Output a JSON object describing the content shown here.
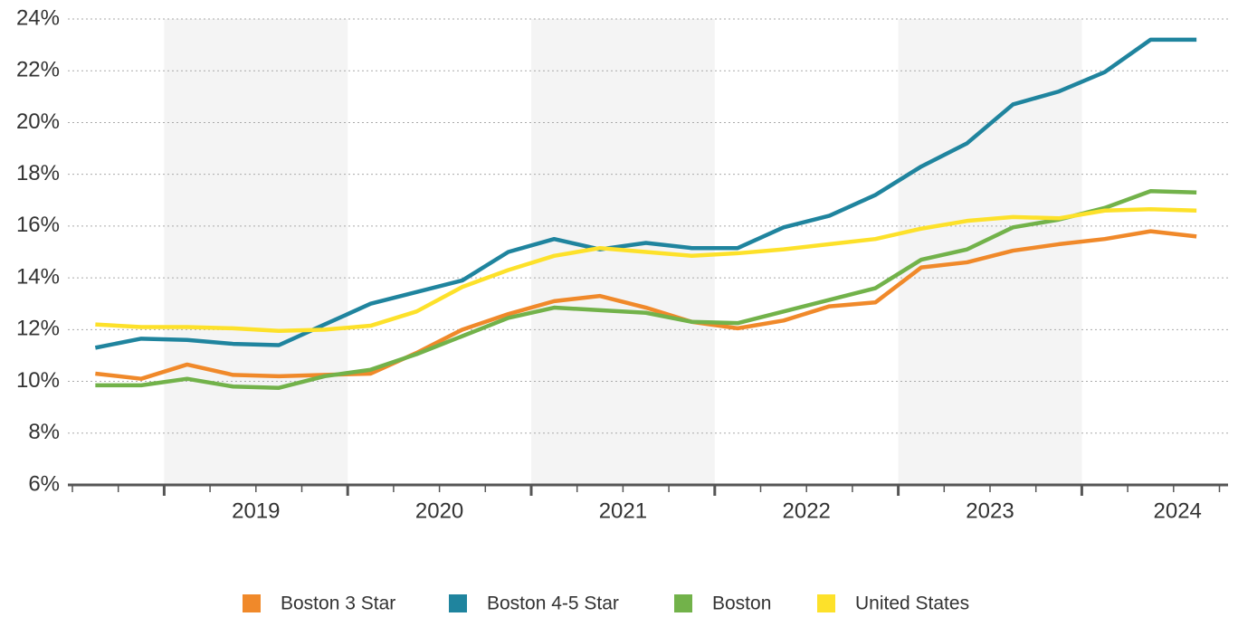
{
  "chart_data": {
    "type": "line",
    "categories": [
      null,
      null,
      null,
      null,
      null,
      null,
      null,
      null,
      null,
      null,
      null,
      null,
      null,
      null,
      null,
      null,
      null,
      null,
      null,
      null,
      null,
      null,
      null,
      null,
      null
    ],
    "year_labels": [
      "2019",
      "2020",
      "2021",
      "2022",
      "2023",
      "2024"
    ],
    "ylim": [
      6,
      24
    ],
    "yticks": [
      {
        "value": 6,
        "label": "6%"
      },
      {
        "value": 8,
        "label": "8%"
      },
      {
        "value": 10,
        "label": "10%"
      },
      {
        "value": 12,
        "label": "12%"
      },
      {
        "value": 14,
        "label": "14%"
      },
      {
        "value": 16,
        "label": "16%"
      },
      {
        "value": 18,
        "label": "18%"
      },
      {
        "value": 20,
        "label": "20%"
      },
      {
        "value": 22,
        "label": "22%"
      },
      {
        "value": 24,
        "label": "24%"
      }
    ],
    "grid": true,
    "legend": "bottom",
    "series": [
      {
        "name": "Boston 3 Star",
        "color": "#f0892a",
        "values": [
          10.3,
          10.1,
          10.65,
          10.25,
          10.2,
          10.25,
          10.3,
          11.1,
          12.0,
          12.6,
          13.1,
          13.3,
          12.85,
          12.3,
          12.05,
          12.35,
          12.9,
          13.05,
          14.4,
          14.6,
          15.05,
          15.3,
          15.5,
          15.8,
          15.6
        ]
      },
      {
        "name": "Boston 4-5 Star",
        "color": "#1f849e",
        "values": [
          11.3,
          11.65,
          11.6,
          11.45,
          11.4,
          12.2,
          13.0,
          13.45,
          13.9,
          15.0,
          15.5,
          15.1,
          15.35,
          15.15,
          15.15,
          15.95,
          16.4,
          17.2,
          18.3,
          19.2,
          20.7,
          21.2,
          21.95,
          23.2,
          23.2
        ]
      },
      {
        "name": "Boston",
        "color": "#72b24a",
        "values": [
          9.85,
          9.85,
          10.1,
          9.8,
          9.75,
          10.2,
          10.45,
          11.05,
          11.75,
          12.45,
          12.85,
          12.75,
          12.65,
          12.3,
          12.25,
          12.7,
          13.15,
          13.6,
          14.7,
          15.1,
          15.95,
          16.25,
          16.7,
          17.35,
          17.3
        ]
      },
      {
        "name": "United States",
        "color": "#fde12a",
        "values": [
          12.2,
          12.1,
          12.1,
          12.05,
          11.95,
          12.0,
          12.15,
          12.7,
          13.65,
          14.3,
          14.85,
          15.15,
          15.0,
          14.85,
          14.95,
          15.1,
          15.3,
          15.5,
          15.9,
          16.2,
          16.35,
          16.3,
          16.6,
          16.65,
          16.6
        ]
      }
    ]
  }
}
